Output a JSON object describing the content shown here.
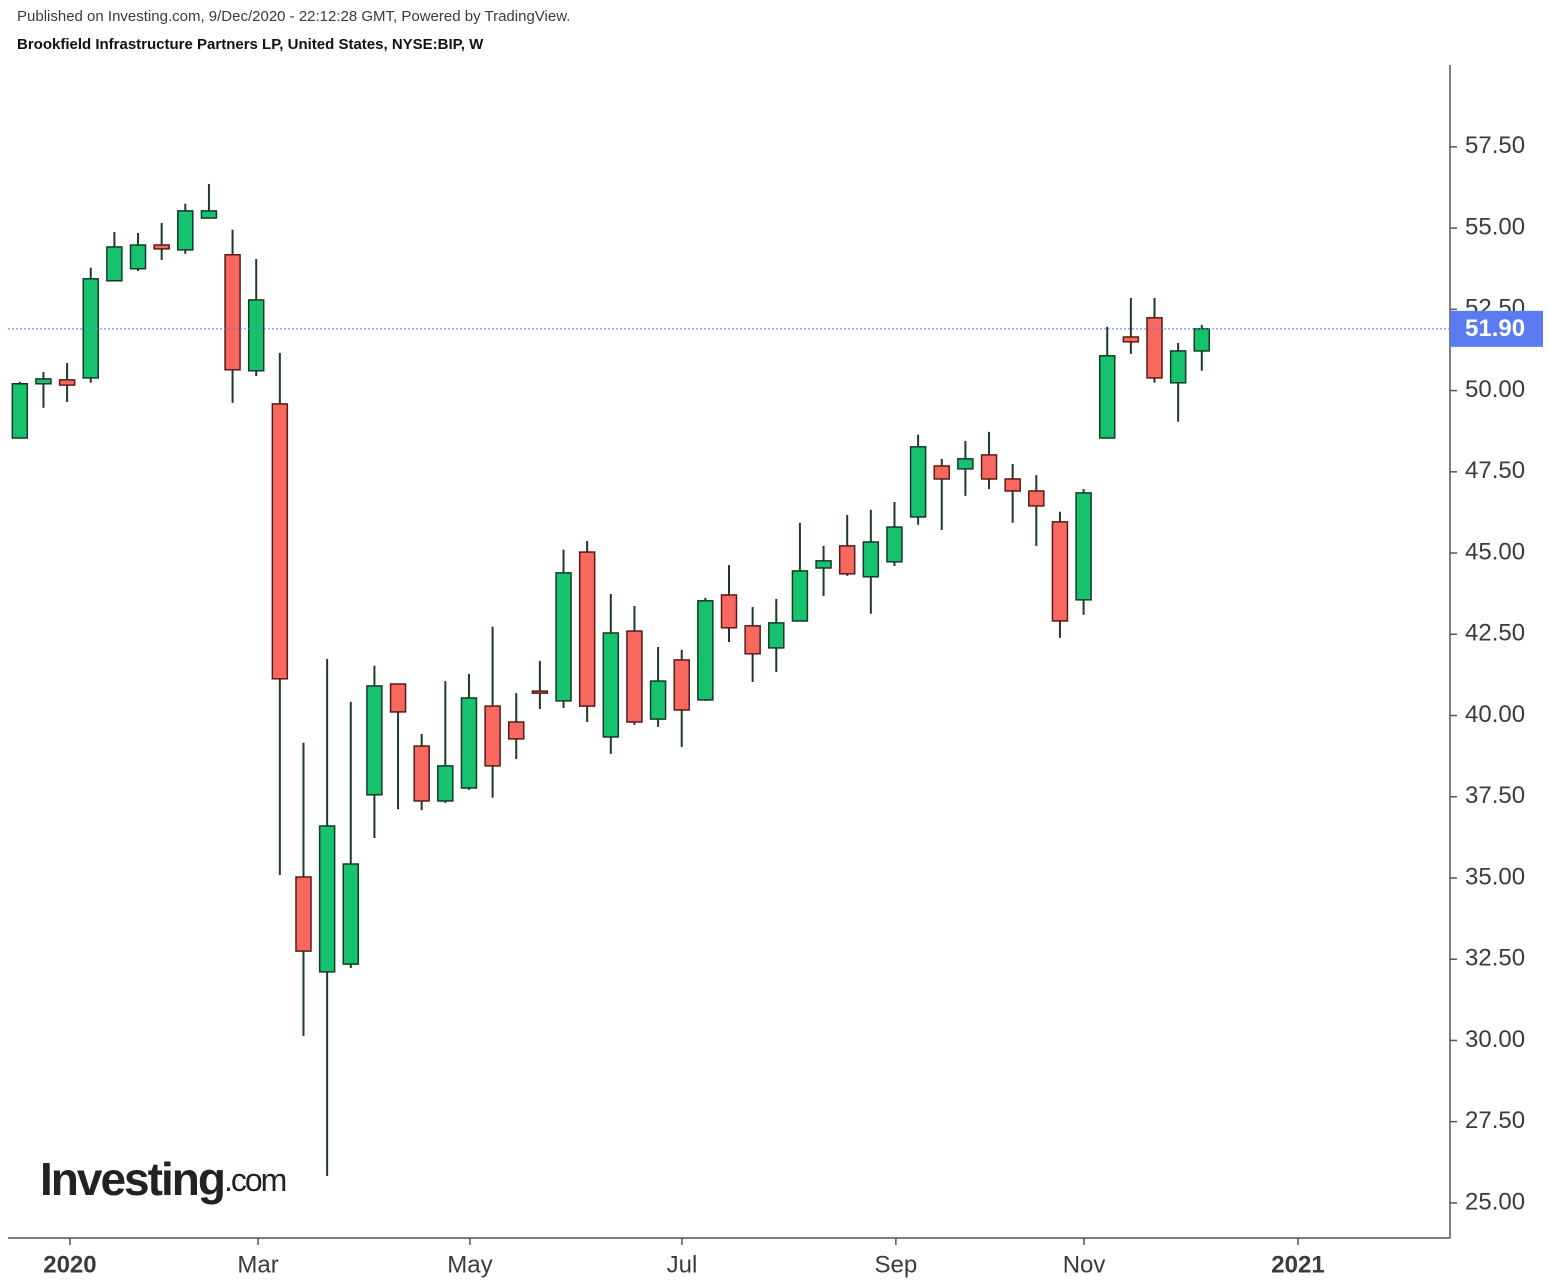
{
  "chart_data": {
    "type": "candlestick",
    "subtitle": "Published on Investing.com, 9/Dec/2020 - 22:12:28 GMT, Powered by TradingView.",
    "title": "Brookfield Infrastructure Partners LP, United States, NYSE:BIP, W",
    "x": [
      0,
      1,
      2,
      3,
      4,
      5,
      6,
      7,
      8,
      9,
      10,
      11,
      12,
      13,
      14,
      15,
      16,
      17,
      18,
      19,
      20,
      21,
      22,
      23,
      24,
      25,
      26,
      27,
      28,
      29,
      30,
      31,
      32,
      33,
      34,
      35,
      36,
      37,
      38,
      39,
      40,
      41,
      42,
      43,
      44,
      45,
      46,
      47,
      48,
      49,
      50
    ],
    "open": [
      48.54,
      50.21,
      50.33,
      50.39,
      53.38,
      53.75,
      54.48,
      54.33,
      55.31,
      54.18,
      50.61,
      49.59,
      35.03,
      32.11,
      32.35,
      37.56,
      40.97,
      39.06,
      37.37,
      37.77,
      40.29,
      39.8,
      40.75,
      40.45,
      45.03,
      39.34,
      42.6,
      39.89,
      41.71,
      40.48,
      43.71,
      42.76,
      42.08,
      42.91,
      44.54,
      45.22,
      44.27,
      44.73,
      46.11,
      47.68,
      47.59,
      48.02,
      47.28,
      46.91,
      45.96,
      43.56,
      48.54,
      51.65,
      52.24,
      50.24,
      51.22
    ],
    "high": [
      50.27,
      50.57,
      50.85,
      53.78,
      54.88,
      54.85,
      55.16,
      55.75,
      56.36,
      54.95,
      54.05,
      51.16,
      39.16,
      41.74,
      40.42,
      41.53,
      40.97,
      39.43,
      41.06,
      41.28,
      42.73,
      40.69,
      41.68,
      45.1,
      45.37,
      43.74,
      43.37,
      42.11,
      42.02,
      43.62,
      44.63,
      43.34,
      43.59,
      45.93,
      45.22,
      46.17,
      46.33,
      46.57,
      48.64,
      47.9,
      48.45,
      48.73,
      47.74,
      47.4,
      46.27,
      46.97,
      51.96,
      52.85,
      52.85,
      51.47,
      52.02
    ],
    "low": [
      48.54,
      49.47,
      49.65,
      50.24,
      53.38,
      53.68,
      54.02,
      54.21,
      55.31,
      49.62,
      50.45,
      35.09,
      30.14,
      25.83,
      32.23,
      36.23,
      37.12,
      37.09,
      37.31,
      37.71,
      37.47,
      38.66,
      40.2,
      40.23,
      39.8,
      38.82,
      39.71,
      39.65,
      39.03,
      40.45,
      42.26,
      41.03,
      41.34,
      42.91,
      43.68,
      44.3,
      43.13,
      44.6,
      45.87,
      45.71,
      46.76,
      46.97,
      45.93,
      45.22,
      42.39,
      43.1,
      48.54,
      51.13,
      50.24,
      49.04,
      50.61
    ],
    "close": [
      50.21,
      50.36,
      50.17,
      53.44,
      54.42,
      54.48,
      54.36,
      55.53,
      55.53,
      50.64,
      52.79,
      41.13,
      32.75,
      36.6,
      35.43,
      40.91,
      40.11,
      37.37,
      38.45,
      40.54,
      38.45,
      39.28,
      40.69,
      44.39,
      40.29,
      42.54,
      39.8,
      41.06,
      40.17,
      43.53,
      42.7,
      41.9,
      42.85,
      44.45,
      44.76,
      44.36,
      45.34,
      45.8,
      48.27,
      47.28,
      47.9,
      47.28,
      46.91,
      46.45,
      42.91,
      46.85,
      51.07,
      51.5,
      50.39,
      51.22,
      51.9
    ],
    "up_color": "#17c26e",
    "down_color": "#f7685e",
    "xlim": [
      -0.5,
      60.5
    ],
    "xticks": [
      {
        "value": 2.12,
        "label": "2020"
      },
      {
        "value": 10.08,
        "label": "Mar"
      },
      {
        "value": 19.04,
        "label": "May"
      },
      {
        "value": 28.01,
        "label": "Jul"
      },
      {
        "value": 37.06,
        "label": "Sep"
      },
      {
        "value": 45.02,
        "label": "Nov"
      },
      {
        "value": 54.07,
        "label": "2021"
      }
    ],
    "ylim": [
      23.92,
      60.02
    ],
    "yticks": [
      {
        "value": 25,
        "label": "25.00"
      },
      {
        "value": 27.5,
        "label": "27.50"
      },
      {
        "value": 30,
        "label": "30.00"
      },
      {
        "value": 32.5,
        "label": "32.50"
      },
      {
        "value": 35,
        "label": "35.00"
      },
      {
        "value": 37.5,
        "label": "37.50"
      },
      {
        "value": 40,
        "label": "40.00"
      },
      {
        "value": 42.5,
        "label": "42.50"
      },
      {
        "value": 45,
        "label": "45.00"
      },
      {
        "value": 47.5,
        "label": "47.50"
      },
      {
        "value": 50,
        "label": "50.00"
      },
      {
        "value": 52.5,
        "label": "52.50"
      },
      {
        "value": 55,
        "label": "55.00"
      },
      {
        "value": 57.5,
        "label": "57.50"
      }
    ],
    "price_line": {
      "value": 51.9,
      "label": "51.90",
      "color": "#5b7cf0"
    },
    "watermark": {
      "main": "Investing",
      "suffix": ".com"
    }
  }
}
